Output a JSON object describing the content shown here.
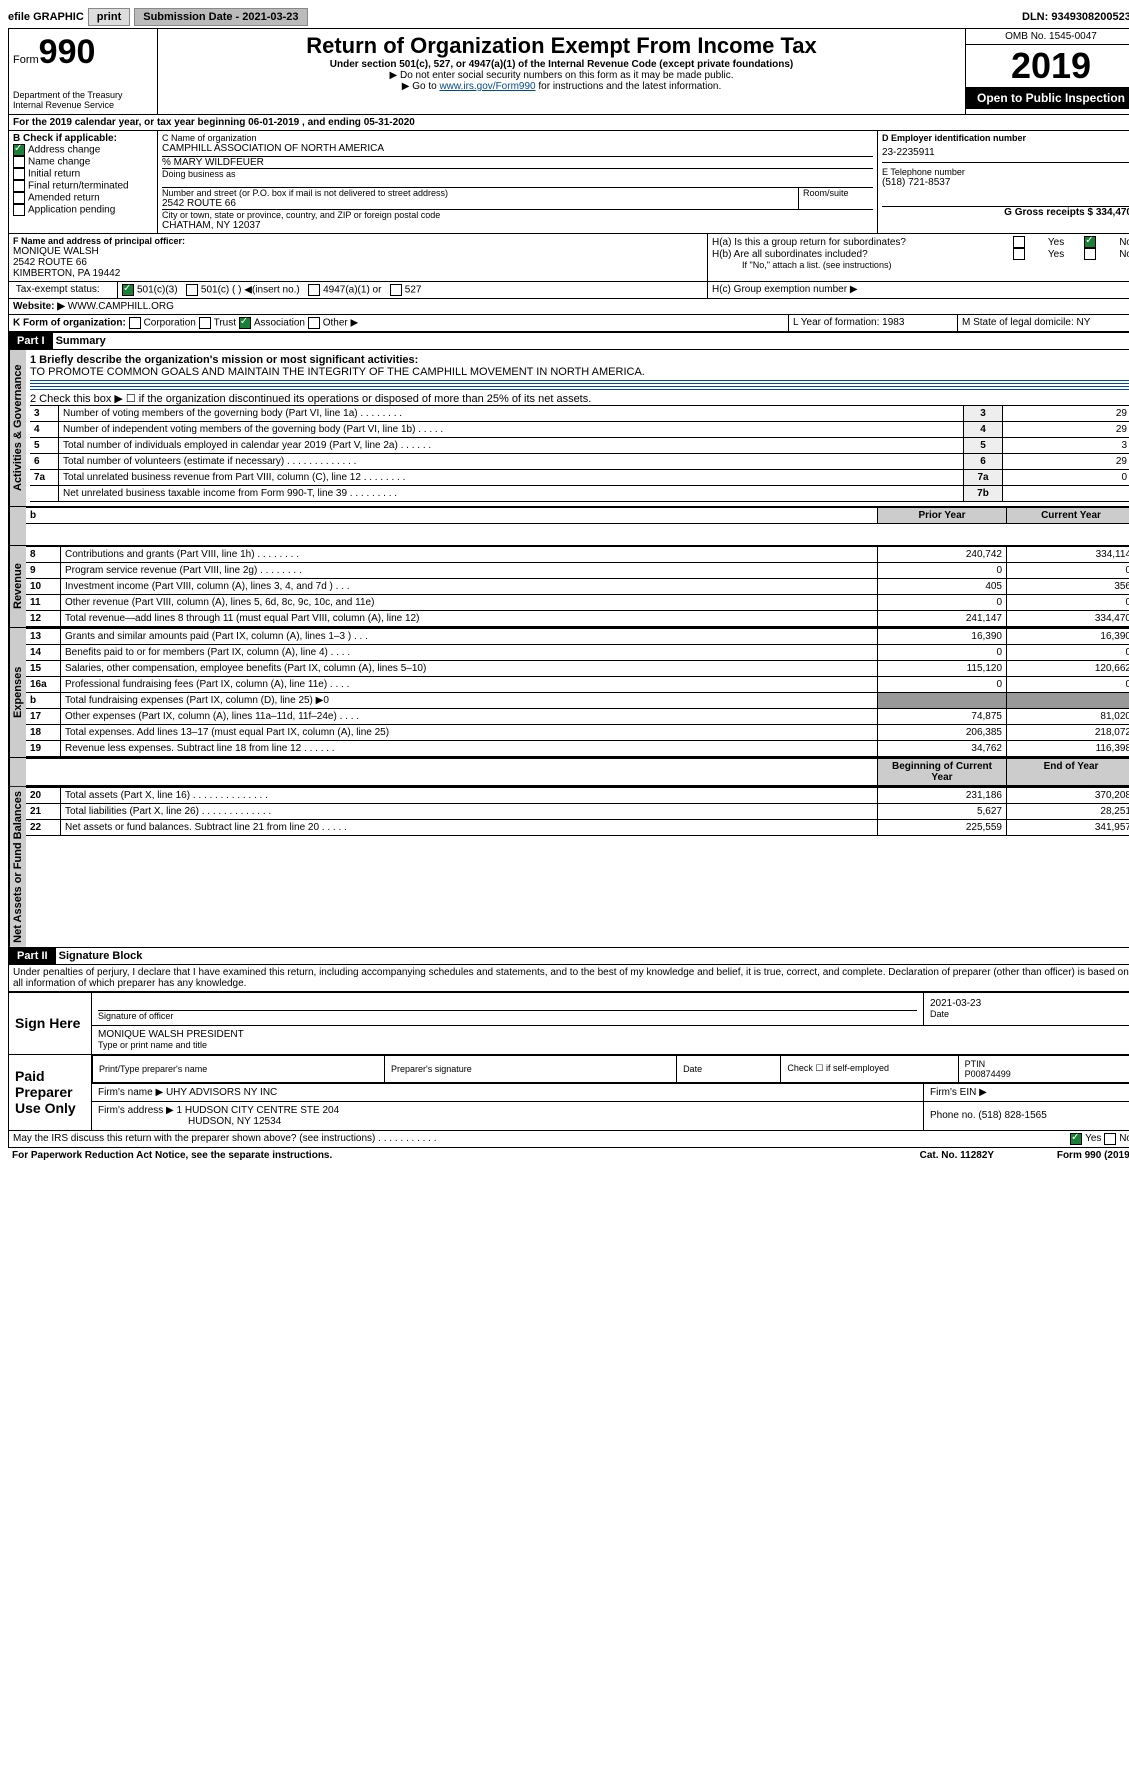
{
  "topbar": {
    "efile": "efile GRAPHIC",
    "print": "print",
    "subDateLbl": "Submission Date - 2021-03-23",
    "dln": "DLN: 93493082005231"
  },
  "header": {
    "formWord": "Form",
    "formNum": "990",
    "dept": "Department of the Treasury\nInternal Revenue Service",
    "title": "Return of Organization Exempt From Income Tax",
    "sub1": "Under section 501(c), 527, or 4947(a)(1) of the Internal Revenue Code (except private foundations)",
    "sub2": "▶ Do not enter social security numbers on this form as it may be made public.",
    "sub3": "▶ Go to www.irs.gov/Form990 for instructions and the latest information.",
    "omb": "OMB No. 1545-0047",
    "year": "2019",
    "open": "Open to Public Inspection",
    "A": "For the 2019 calendar year, or tax year beginning 06-01-2019   , and ending 05-31-2020"
  },
  "B": {
    "hdr": "B Check if applicable:",
    "opts": [
      "Address change",
      "Name change",
      "Initial return",
      "Final return/terminated",
      "Amended return",
      "Application pending"
    ]
  },
  "C": {
    "lbl": "C Name of organization",
    "name": "CAMPHILL ASSOCIATION OF NORTH AMERICA",
    "care": "% MARY WILDFEUER",
    "dba": "Doing business as",
    "addrLbl": "Number and street (or P.O. box if mail is not delivered to street address)",
    "room": "Room/suite",
    "addr": "2542 ROUTE 66",
    "cityLbl": "City or town, state or province, country, and ZIP or foreign postal code",
    "city": "CHATHAM, NY  12037"
  },
  "D": {
    "lbl": "D Employer identification number",
    "val": "23-2235911"
  },
  "E": {
    "lbl": "E Telephone number",
    "val": "(518) 721-8537"
  },
  "G": {
    "lbl": "G Gross receipts $ 334,470"
  },
  "F": {
    "lbl": "F  Name and address of principal officer:",
    "name": "MONIQUE WALSH",
    "addr1": "2542 ROUTE 66",
    "addr2": "KIMBERTON, PA  19442"
  },
  "H": {
    "a": "H(a)  Is this a group return for subordinates?",
    "b": "H(b)  Are all subordinates included?",
    "bnote": "If \"No,\" attach a list. (see instructions)",
    "c": "H(c)  Group exemption number ▶",
    "yes": "Yes",
    "no": "No"
  },
  "I": {
    "lbl": "Tax-exempt status:",
    "opts": [
      "501(c)(3)",
      "501(c) (  ) ◀(insert no.)",
      "4947(a)(1) or",
      "527"
    ]
  },
  "J": {
    "lbl": "Website: ▶",
    "val": "WWW.CAMPHILL.ORG"
  },
  "K": {
    "lbl": "K Form of organization:",
    "opts": [
      "Corporation",
      "Trust",
      "Association",
      "Other ▶"
    ]
  },
  "L": {
    "lbl": "L Year of formation: 1983"
  },
  "M": {
    "lbl": "M State of legal domicile: NY"
  },
  "part1": {
    "hdr": "Part I",
    "title": "Summary",
    "l1": "1  Briefly describe the organization's mission or most significant activities:",
    "mission": "TO PROMOTE COMMON GOALS AND MAINTAIN THE INTEGRITY OF THE CAMPHILL MOVEMENT IN NORTH AMERICA.",
    "l2": "2   Check this box ▶ ☐  if the organization discontinued its operations or disposed of more than 25% of its net assets.",
    "govRows": [
      {
        "n": "3",
        "t": "Number of voting members of the governing body (Part VI, line 1a)  .  .  .  .  .  .  .  .",
        "c": "3",
        "v": "29"
      },
      {
        "n": "4",
        "t": "Number of independent voting members of the governing body (Part VI, line 1b)  .  .  .  .  .",
        "c": "4",
        "v": "29"
      },
      {
        "n": "5",
        "t": "Total number of individuals employed in calendar year 2019 (Part V, line 2a)  .  .  .  .  .  .",
        "c": "5",
        "v": "3"
      },
      {
        "n": "6",
        "t": "Total number of volunteers (estimate if necessary)  .  .  .  .  .  .  .  .  .  .  .  .  .",
        "c": "6",
        "v": "29"
      },
      {
        "n": "7a",
        "t": "Total unrelated business revenue from Part VIII, column (C), line 12  .  .  .  .  .  .  .  .",
        "c": "7a",
        "v": "0"
      },
      {
        "n": "",
        "t": "Net unrelated business taxable income from Form 990-T, line 39  .  .  .  .  .  .  .  .  .",
        "c": "7b",
        "v": ""
      }
    ],
    "cols": {
      "prior": "Prior Year",
      "curr": "Current Year",
      "beg": "Beginning of Current Year",
      "end": "End of Year"
    },
    "revenue": [
      {
        "n": "8",
        "t": "Contributions and grants (Part VIII, line 1h)  .  .  .  .  .  .  .  .",
        "p": "240,742",
        "c": "334,114"
      },
      {
        "n": "9",
        "t": "Program service revenue (Part VIII, line 2g)  .  .  .  .  .  .  .  .",
        "p": "0",
        "c": "0"
      },
      {
        "n": "10",
        "t": "Investment income (Part VIII, column (A), lines 3, 4, and 7d )  .  .  .",
        "p": "405",
        "c": "356"
      },
      {
        "n": "11",
        "t": "Other revenue (Part VIII, column (A), lines 5, 6d, 8c, 9c, 10c, and 11e)",
        "p": "0",
        "c": "0"
      },
      {
        "n": "12",
        "t": "Total revenue—add lines 8 through 11 (must equal Part VIII, column (A), line 12)",
        "p": "241,147",
        "c": "334,470"
      }
    ],
    "expenses": [
      {
        "n": "13",
        "t": "Grants and similar amounts paid (Part IX, column (A), lines 1–3 )  .  .  .",
        "p": "16,390",
        "c": "16,390"
      },
      {
        "n": "14",
        "t": "Benefits paid to or for members (Part IX, column (A), line 4)  .  .  .  .",
        "p": "0",
        "c": "0"
      },
      {
        "n": "15",
        "t": "Salaries, other compensation, employee benefits (Part IX, column (A), lines 5–10)",
        "p": "115,120",
        "c": "120,662"
      },
      {
        "n": "16a",
        "t": "Professional fundraising fees (Part IX, column (A), line 11e)  .  .  .  .",
        "p": "0",
        "c": "0"
      },
      {
        "n": "b",
        "t": "Total fundraising expenses (Part IX, column (D), line 25) ▶0",
        "p": "",
        "c": ""
      },
      {
        "n": "17",
        "t": "Other expenses (Part IX, column (A), lines 11a–11d, 11f–24e)  .  .  .  .",
        "p": "74,875",
        "c": "81,020"
      },
      {
        "n": "18",
        "t": "Total expenses. Add lines 13–17 (must equal Part IX, column (A), line 25)",
        "p": "206,385",
        "c": "218,072"
      },
      {
        "n": "19",
        "t": "Revenue less expenses. Subtract line 18 from line 12  .  .  .  .  .  .",
        "p": "34,762",
        "c": "116,398"
      }
    ],
    "netassets": [
      {
        "n": "20",
        "t": "Total assets (Part X, line 16)  .  .  .  .  .  .  .  .  .  .  .  .  .  .",
        "p": "231,186",
        "c": "370,208"
      },
      {
        "n": "21",
        "t": "Total liabilities (Part X, line 26)  .  .  .  .  .  .  .  .  .  .  .  .  .",
        "p": "5,627",
        "c": "28,251"
      },
      {
        "n": "22",
        "t": "Net assets or fund balances. Subtract line 21 from line 20  .  .  .  .  .",
        "p": "225,559",
        "c": "341,957"
      }
    ],
    "sides": {
      "gov": "Activities & Governance",
      "rev": "Revenue",
      "exp": "Expenses",
      "net": "Net Assets or Fund Balances"
    }
  },
  "part2": {
    "hdr": "Part II",
    "title": "Signature Block",
    "decl": "Under penalties of perjury, I declare that I have examined this return, including accompanying schedules and statements, and to the best of my knowledge and belief, it is true, correct, and complete. Declaration of preparer (other than officer) is based on all information of which preparer has any knowledge.",
    "signHere": "Sign Here",
    "sigOfOfficer": "Signature of officer",
    "date": "Date",
    "dateVal": "2021-03-23",
    "name": "MONIQUE WALSH  PRESIDENT",
    "typeName": "Type or print name and title",
    "paid": "Paid Preparer Use Only",
    "prepName": "Print/Type preparer's name",
    "prepSig": "Preparer's signature",
    "checkSelf": "Check ☐ if self-employed",
    "ptin": "PTIN",
    "ptinVal": "P00874499",
    "firmName": "Firm's name    ▶",
    "firmNameVal": "UHY ADVISORS NY INC",
    "firmEin": "Firm's EIN ▶",
    "firmAddr": "Firm's address ▶",
    "firmAddrVal": "1 HUDSON CITY CENTRE STE 204",
    "firmCity": "HUDSON, NY  12534",
    "phone": "Phone no. (518) 828-1565",
    "discuss": "May the IRS discuss this return with the preparer shown above? (see instructions)  .  .  .  .  .  .  .  .  .  .  .",
    "paperwork": "For Paperwork Reduction Act Notice, see the separate instructions.",
    "cat": "Cat. No. 11282Y",
    "formFoot": "Form 990 (2019)"
  }
}
